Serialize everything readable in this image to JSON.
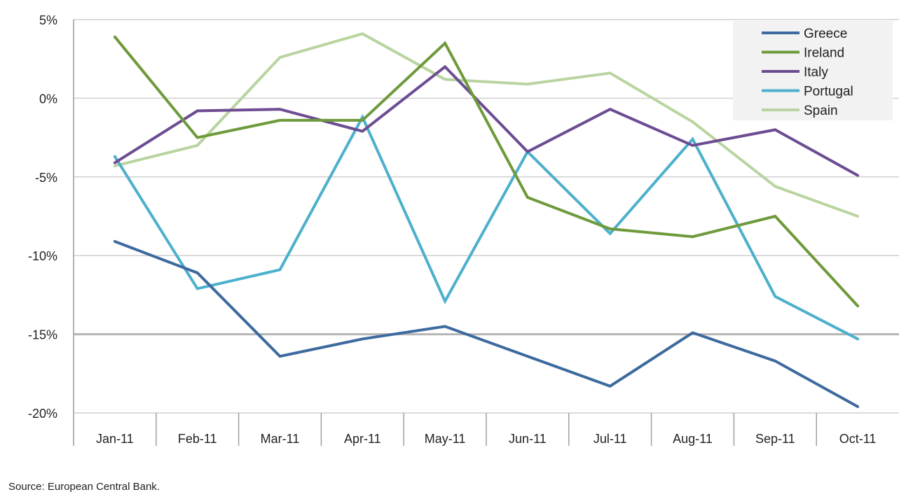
{
  "chart_data": {
    "type": "line",
    "categories": [
      "Jan-11",
      "Feb-11",
      "Mar-11",
      "Apr-11",
      "May-11",
      "Jun-11",
      "Jul-11",
      "Aug-11",
      "Sep-11",
      "Oct-11"
    ],
    "y_ticks": [
      "5%",
      "0%",
      "-5%",
      "-10%",
      "-15%",
      "-20%"
    ],
    "y_tick_values": [
      5,
      0,
      -5,
      -10,
      -15,
      -20
    ],
    "ylim": [
      -20,
      5
    ],
    "unit": "%",
    "grid": "horizontal",
    "legend_position": "top-right",
    "series": [
      {
        "name": "Greece",
        "color": "#3d6a9e",
        "values": [
          -9.1,
          -11.1,
          -16.4,
          -15.3,
          -14.5,
          -16.4,
          -18.3,
          -14.9,
          -16.7,
          -19.6
        ]
      },
      {
        "name": "Ireland",
        "color": "#6e9a3b",
        "values": [
          3.9,
          -2.5,
          -1.4,
          -1.4,
          3.5,
          -6.3,
          -8.3,
          -8.8,
          -7.5,
          -13.2
        ]
      },
      {
        "name": "Italy",
        "color": "#6c4c92",
        "values": [
          -4.1,
          -0.8,
          -0.7,
          -2.1,
          2.0,
          -3.4,
          -0.7,
          -3.0,
          -2.0,
          -4.9
        ]
      },
      {
        "name": "Portugal",
        "color": "#4db0cc",
        "values": [
          -3.7,
          -12.1,
          -10.9,
          -1.2,
          -12.9,
          -3.4,
          -8.6,
          -2.6,
          -12.6,
          -15.3
        ]
      },
      {
        "name": "Spain",
        "color": "#b9d4a0",
        "values": [
          -4.3,
          -3.0,
          2.6,
          4.1,
          1.2,
          0.9,
          1.6,
          -1.5,
          -5.6,
          -7.5
        ]
      }
    ]
  },
  "source": "Source: European Central Bank."
}
